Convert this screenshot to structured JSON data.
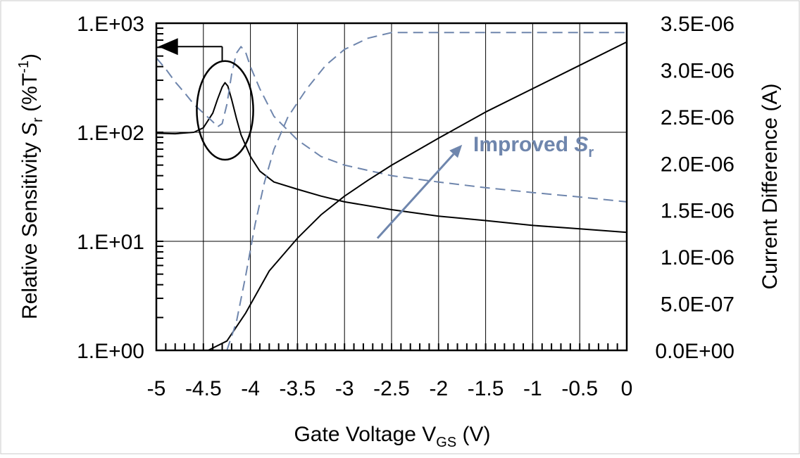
{
  "chart_data": {
    "type": "line",
    "xlabel": {
      "text": "Gate Voltage V",
      "sub": "GS",
      "suffix": " (V)"
    },
    "ylabel_left": {
      "text": "Relative Sensitivity ",
      "italic": "S",
      "sub": "r",
      "suffix": " (%T",
      "sup": "-1",
      "end": ")"
    },
    "ylabel_right": "Current Difference (A)",
    "x_ticks": [
      "-5",
      "-4.5",
      "-4",
      "-3.5",
      "-3",
      "-2.5",
      "-2",
      "-1.5",
      "-1",
      "-0.5",
      "0"
    ],
    "x_range": [
      -5,
      0
    ],
    "y_left_ticks": [
      "1.E+00",
      "1.E+01",
      "1.E+02",
      "1.E+03"
    ],
    "y_left_range": [
      1,
      1000
    ],
    "y_left_scale": "log",
    "y_right_ticks": [
      "0.0E+00",
      "5.0E-07",
      "1.0E-06",
      "1.5E-06",
      "2.0E-06",
      "2.5E-06",
      "3.0E-06",
      "3.5E-06"
    ],
    "y_right_range": [
      0,
      3.5e-06
    ],
    "grid": true,
    "series": [
      {
        "style": "solid",
        "color": "#000000",
        "axis": "left",
        "points": [
          [
            -5,
            98
          ],
          [
            -4.8,
            97
          ],
          [
            -4.6,
            100
          ],
          [
            -4.5,
            110
          ],
          [
            -4.4,
            150
          ],
          [
            -4.35,
            200
          ],
          [
            -4.3,
            260
          ],
          [
            -4.27,
            285
          ],
          [
            -4.24,
            265
          ],
          [
            -4.2,
            200
          ],
          [
            -4.15,
            135
          ],
          [
            -4.1,
            95
          ],
          [
            -4.0,
            60
          ],
          [
            -3.9,
            44
          ],
          [
            -3.75,
            35
          ],
          [
            -3.5,
            30
          ],
          [
            -3.25,
            26
          ],
          [
            -3,
            23
          ],
          [
            -2.5,
            19.5
          ],
          [
            -2,
            17
          ],
          [
            -1.5,
            15.5
          ],
          [
            -1,
            14
          ],
          [
            -0.5,
            13
          ],
          [
            0,
            12.1
          ]
        ]
      },
      {
        "style": "dashed",
        "color": "#6f86ad",
        "axis": "left",
        "points": [
          [
            -5,
            480
          ],
          [
            -4.9,
            380
          ],
          [
            -4.8,
            290
          ],
          [
            -4.7,
            230
          ],
          [
            -4.6,
            180
          ],
          [
            -4.5,
            150
          ],
          [
            -4.4,
            125
          ],
          [
            -4.35,
            112
          ],
          [
            -4.3,
            120
          ],
          [
            -4.25,
            180
          ],
          [
            -4.2,
            340
          ],
          [
            -4.15,
            530
          ],
          [
            -4.1,
            610
          ],
          [
            -4.05,
            540
          ],
          [
            -4.0,
            400
          ],
          [
            -3.9,
            250
          ],
          [
            -3.75,
            140
          ],
          [
            -3.5,
            85
          ],
          [
            -3.25,
            60
          ],
          [
            -3,
            50
          ],
          [
            -2.5,
            40
          ],
          [
            -2,
            35
          ],
          [
            -1.5,
            31
          ],
          [
            -1,
            28
          ],
          [
            -0.5,
            25.5
          ],
          [
            0,
            23
          ]
        ]
      },
      {
        "style": "solid",
        "color": "#000000",
        "axis": "right",
        "points": [
          [
            -4.45,
            0
          ],
          [
            -4.25,
            1e-07
          ],
          [
            -4.05,
            4e-07
          ],
          [
            -3.8,
            8.5e-07
          ],
          [
            -3.5,
            1.2e-06
          ],
          [
            -3.25,
            1.45e-06
          ],
          [
            -3,
            1.65e-06
          ],
          [
            -2.75,
            1.82e-06
          ],
          [
            -2.5,
            1.98e-06
          ],
          [
            -2,
            2.27e-06
          ],
          [
            -1.5,
            2.55e-06
          ],
          [
            -1,
            2.8e-06
          ],
          [
            -0.5,
            3.05e-06
          ],
          [
            0,
            3.3e-06
          ]
        ]
      },
      {
        "style": "dashed",
        "color": "#6f86ad",
        "axis": "right",
        "points": [
          [
            -4.25,
            0
          ],
          [
            -4.15,
            3e-07
          ],
          [
            -4.05,
            8e-07
          ],
          [
            -3.95,
            1.35e-06
          ],
          [
            -3.85,
            1.8e-06
          ],
          [
            -3.75,
            2.15e-06
          ],
          [
            -3.6,
            2.5e-06
          ],
          [
            -3.4,
            2.8e-06
          ],
          [
            -3.2,
            3.05e-06
          ],
          [
            -3,
            3.22e-06
          ],
          [
            -2.75,
            3.34e-06
          ],
          [
            -2.5,
            3.4e-06
          ],
          [
            -2,
            3.4e-06
          ],
          [
            -1,
            3.4e-06
          ],
          [
            0,
            3.4e-06
          ]
        ]
      }
    ],
    "annotation": {
      "text": "Improved ",
      "italic": "S",
      "sub": "r"
    },
    "annotation_arrow": {
      "from": [
        -2.65,
        1.2e-06
      ],
      "to": [
        -1.75,
        2.2e-06
      ]
    },
    "left_arrow": {
      "from": [
        -4.3,
        3.25e-06
      ],
      "to": [
        -4.98,
        3.25e-06
      ]
    },
    "ellipse": {
      "cx": -4.27,
      "cy": 150,
      "rx_v": 0.3,
      "y_top": 450,
      "y_bottom": 56
    }
  }
}
